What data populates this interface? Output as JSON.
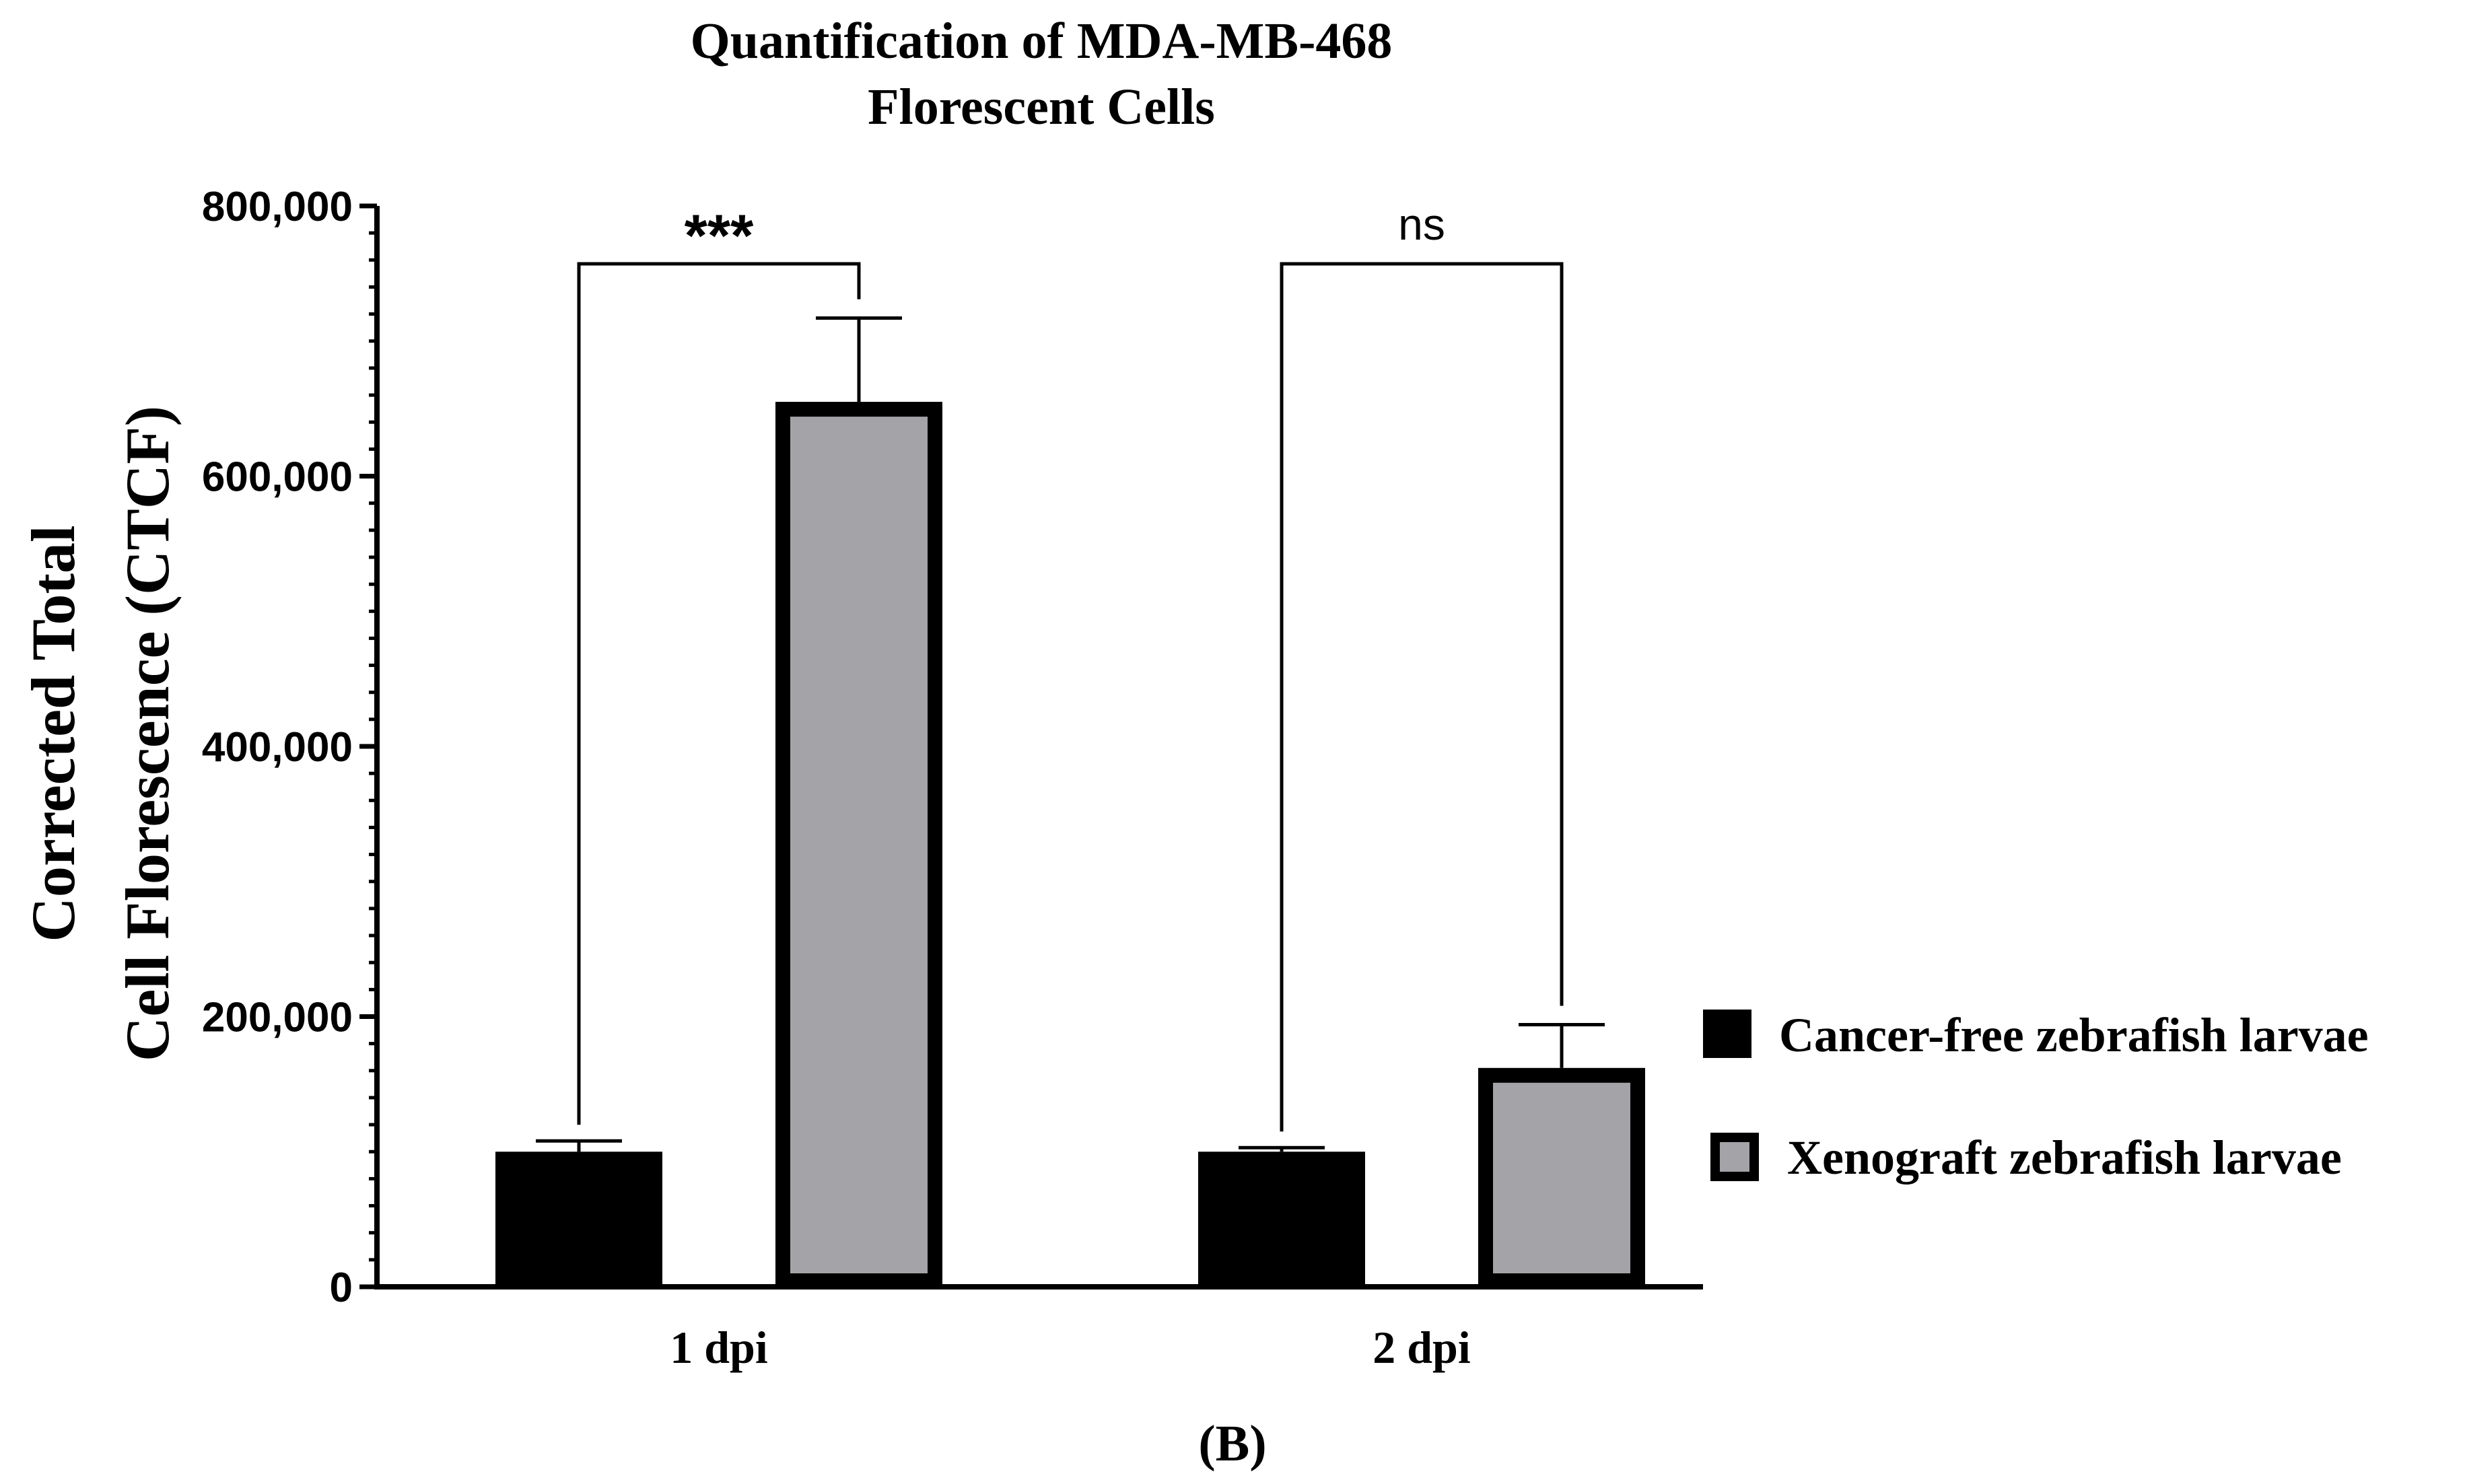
{
  "chart_data": {
    "type": "bar",
    "title": "Quantification of MDA-MB-468 Florescent Cells",
    "title_lines": [
      "Quantification of MDA-MB-468",
      "Florescent Cells"
    ],
    "xlabel": "",
    "ylabel": "Corrected Total Cell Florescence (CTCF)",
    "ylabel_lines": [
      "Corrected Total",
      "Cell Florescence (CTCF)"
    ],
    "ylim": [
      0,
      800000
    ],
    "yticks": [
      0,
      200000,
      400000,
      600000,
      800000
    ],
    "ytick_labels": [
      "0",
      "200,000",
      "400,000",
      "600,000",
      "800,000"
    ],
    "minor_tick_step": 20000,
    "categories": [
      "1 dpi",
      "2 dpi"
    ],
    "series": [
      {
        "name": "Cancer-free zebrafish larvae",
        "color": "#000000",
        "values": [
          100000,
          100000
        ],
        "errors": [
          8000,
          3000
        ]
      },
      {
        "name": "Xenograft zebrafish larvae",
        "color": "#a4a3a8",
        "values": [
          655000,
          162000
        ],
        "errors": [
          62000,
          32000
        ]
      }
    ],
    "significance": [
      {
        "category": "1 dpi",
        "label": "***"
      },
      {
        "category": "2 dpi",
        "label": "ns"
      }
    ],
    "legend_position": "right",
    "panel_label": "(B)"
  }
}
